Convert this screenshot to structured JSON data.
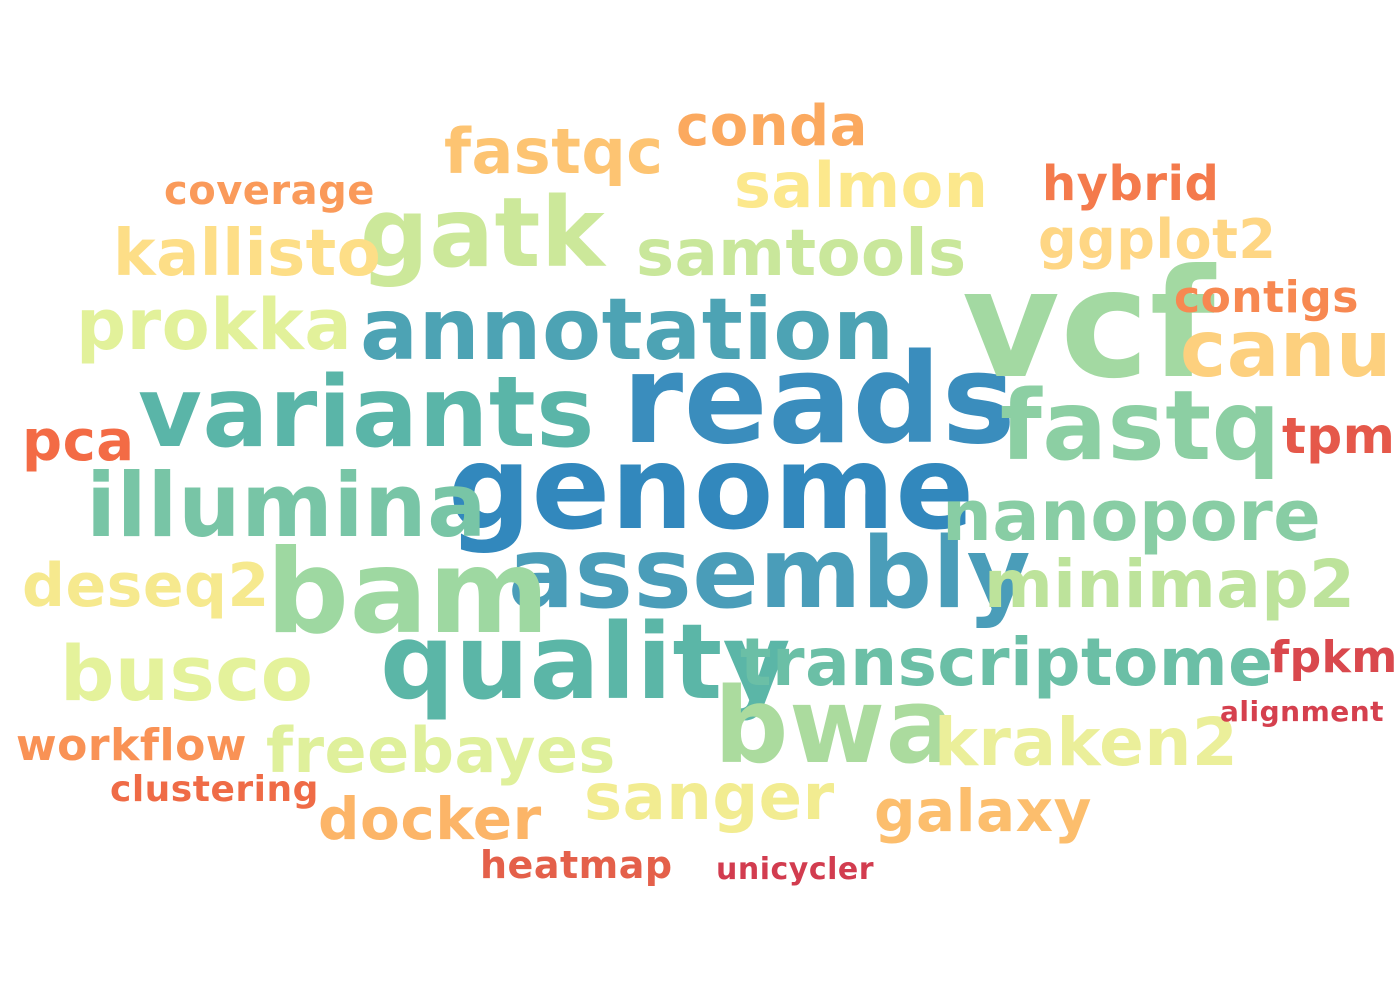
{
  "words": [
    {
      "text": "reads",
      "color": "#3a8dbd"
    },
    {
      "text": "genome",
      "color": "#3288bd"
    },
    {
      "text": "vcf",
      "color": "#a3d9a2"
    },
    {
      "text": "variants",
      "color": "#5ab5a8"
    },
    {
      "text": "assembly",
      "color": "#4a9db9"
    },
    {
      "text": "annotation",
      "color": "#4da3b4"
    },
    {
      "text": "bam",
      "color": "#9ed8a1"
    },
    {
      "text": "quality",
      "color": "#5bb6a7"
    },
    {
      "text": "fastq",
      "color": "#8ccfa3"
    },
    {
      "text": "illumina",
      "color": "#78c5a6"
    },
    {
      "text": "bwa",
      "color": "#abdb9e"
    },
    {
      "text": "gatk",
      "color": "#cce89a"
    },
    {
      "text": "transcriptome",
      "color": "#6bbfa6"
    },
    {
      "text": "nanopore",
      "color": "#88cda4"
    },
    {
      "text": "canu",
      "color": "#fdd07e"
    },
    {
      "text": "prokka",
      "color": "#e2f19a"
    },
    {
      "text": "minimap2",
      "color": "#bde39b"
    },
    {
      "text": "busco",
      "color": "#e4f29b"
    },
    {
      "text": "samtools",
      "color": "#c9e79b"
    },
    {
      "text": "kraken2",
      "color": "#ebef9a"
    },
    {
      "text": "kallisto",
      "color": "#fdde87"
    },
    {
      "text": "salmon",
      "color": "#fce88c"
    },
    {
      "text": "fastqc",
      "color": "#fdc472"
    },
    {
      "text": "sanger",
      "color": "#f2ec91"
    },
    {
      "text": "freebayes",
      "color": "#dff09b"
    },
    {
      "text": "deseq2",
      "color": "#f6e98e"
    },
    {
      "text": "conda",
      "color": "#fba95f"
    },
    {
      "text": "ggplot2",
      "color": "#fed684"
    },
    {
      "text": "docker",
      "color": "#fcb568"
    },
    {
      "text": "galaxy",
      "color": "#fcbe6d"
    },
    {
      "text": "pca",
      "color": "#f36b45"
    },
    {
      "text": "workflow",
      "color": "#f99255"
    },
    {
      "text": "hybrid",
      "color": "#f47a4c"
    },
    {
      "text": "contigs",
      "color": "#f78851"
    },
    {
      "text": "tpm",
      "color": "#e5584a"
    },
    {
      "text": "fpkm",
      "color": "#d9484d"
    },
    {
      "text": "coverage",
      "color": "#fa9a5a"
    },
    {
      "text": "clustering",
      "color": "#ef6b46"
    },
    {
      "text": "heatmap",
      "color": "#e4604a"
    },
    {
      "text": "alignment",
      "color": "#d5404e"
    },
    {
      "text": "unicycler",
      "color": "#d23c4f"
    }
  ]
}
